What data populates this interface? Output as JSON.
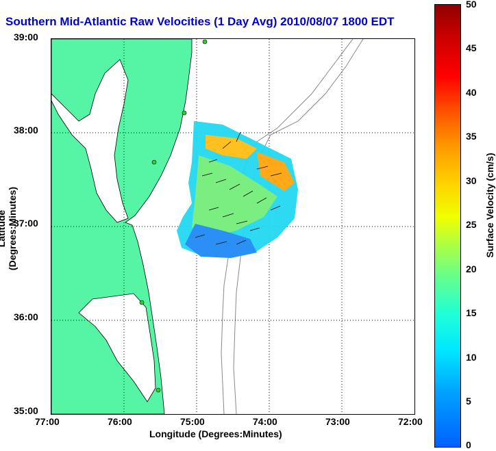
{
  "title": "Southern Mid-Atlantic Raw Velocities (1 Day Avg) 2010/08/07 1800 EDT",
  "x_axis": {
    "label": "Longitude (Degrees:Minutes)",
    "ticks": [
      "77:00",
      "76:00",
      "75:00",
      "74:00",
      "73:00",
      "72:00"
    ]
  },
  "y_axis": {
    "label": "Latitude (Degrees:Minutes)",
    "ticks": [
      "39:00",
      "38:00",
      "37:00",
      "36:00",
      "35:00"
    ]
  },
  "colorbar": {
    "label": "Surface Velocity (cm/s)",
    "ticks": [
      "50",
      "45",
      "40",
      "35",
      "30",
      "25",
      "20",
      "15",
      "10",
      "5",
      "0"
    ]
  },
  "colors": {
    "land": "#55f5a5",
    "title": "#0000cc",
    "bathymetry": "#888888",
    "station": "#33cc33"
  }
}
